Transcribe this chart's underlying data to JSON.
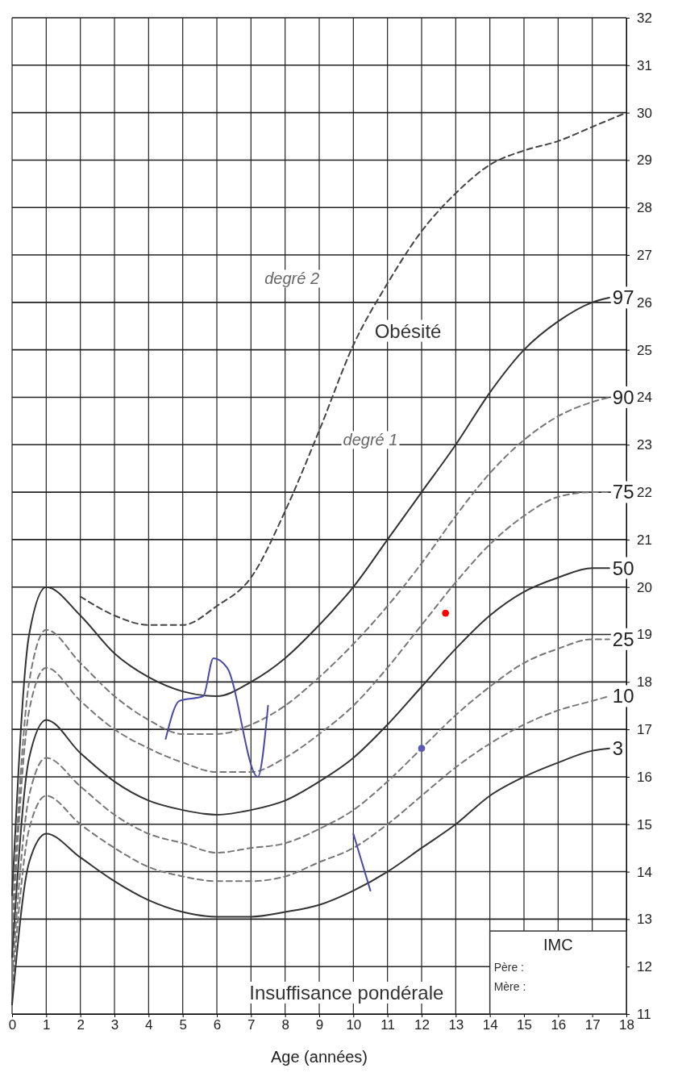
{
  "chart_data": {
    "type": "line",
    "xlabel": "Age (années)",
    "xlim": [
      0,
      18
    ],
    "ylim": [
      11,
      32
    ],
    "xticks": [
      0,
      1,
      2,
      3,
      4,
      5,
      6,
      7,
      8,
      9,
      10,
      11,
      12,
      13,
      14,
      15,
      16,
      17,
      18
    ],
    "yticks": [
      11,
      12,
      13,
      14,
      15,
      16,
      17,
      18,
      19,
      20,
      21,
      22,
      23,
      24,
      25,
      26,
      27,
      28,
      29,
      30,
      31,
      32
    ],
    "grid": true,
    "marker": "none",
    "annotations": [
      "degré 2",
      "Obésité",
      "degré 1",
      "Insuffisance pondérale",
      "IMC",
      "Père :",
      "Mère :"
    ],
    "series": [
      {
        "name": "97",
        "color": "#333333",
        "line_style": "solid",
        "x": [
          0,
          0.5,
          1,
          2,
          3,
          4,
          5,
          6,
          7,
          8,
          9,
          10,
          11,
          12,
          13,
          14,
          15,
          16,
          17,
          17.5
        ],
        "values": [
          13.5,
          19.0,
          20.0,
          19.4,
          18.6,
          18.1,
          17.8,
          17.7,
          18.0,
          18.5,
          19.2,
          20.0,
          21.0,
          22.0,
          23.0,
          24.1,
          25.0,
          25.6,
          26.0,
          26.1
        ]
      },
      {
        "color": "#444444",
        "line_style": "dashed",
        "x": [
          2,
          3,
          4,
          5,
          6,
          7,
          8,
          9,
          10,
          11,
          12,
          13,
          14,
          15,
          16,
          17,
          18
        ],
        "values": [
          19.8,
          19.4,
          19.2,
          19.2,
          19.6,
          20.2,
          21.6,
          23.3,
          25.1,
          26.4,
          27.5,
          28.3,
          28.9,
          29.2,
          29.4,
          29.7,
          30.0
        ]
      },
      {
        "name": "90",
        "color": "#777777",
        "line_style": "dashed",
        "x": [
          0,
          0.5,
          1,
          2,
          3,
          4,
          5,
          6,
          7,
          8,
          9,
          10,
          11,
          12,
          13,
          14,
          15,
          16,
          17,
          17.5
        ],
        "values": [
          13.0,
          18.0,
          19.1,
          18.4,
          17.7,
          17.2,
          16.9,
          16.9,
          17.1,
          17.5,
          18.1,
          18.8,
          19.6,
          20.5,
          21.5,
          22.4,
          23.1,
          23.6,
          23.9,
          24.0
        ]
      },
      {
        "name": "75",
        "color": "#777777",
        "line_style": "dashed",
        "x": [
          0,
          0.5,
          1,
          2,
          3,
          4,
          5,
          6,
          7,
          8,
          9,
          10,
          11,
          12,
          13,
          14,
          15,
          16,
          17,
          17.5
        ],
        "values": [
          12.6,
          17.4,
          18.3,
          17.6,
          17.0,
          16.6,
          16.3,
          16.1,
          16.1,
          16.4,
          16.9,
          17.5,
          18.3,
          19.2,
          20.1,
          20.9,
          21.5,
          21.9,
          22.0,
          22.0
        ]
      },
      {
        "name": "50",
        "color": "#333333",
        "line_style": "solid",
        "x": [
          0,
          0.5,
          1,
          2,
          3,
          4,
          5,
          6,
          7,
          8,
          9,
          10,
          11,
          12,
          13,
          14,
          15,
          16,
          17,
          17.5
        ],
        "values": [
          12.2,
          16.4,
          17.2,
          16.5,
          15.9,
          15.5,
          15.3,
          15.2,
          15.3,
          15.5,
          15.9,
          16.4,
          17.1,
          17.9,
          18.7,
          19.4,
          19.9,
          20.2,
          20.4,
          20.4
        ]
      },
      {
        "name": "25",
        "color": "#777777",
        "line_style": "dashed",
        "x": [
          0,
          0.5,
          1,
          2,
          3,
          4,
          5,
          6,
          7,
          8,
          9,
          10,
          11,
          12,
          13,
          14,
          15,
          16,
          17,
          17.5
        ],
        "values": [
          11.8,
          15.6,
          16.4,
          15.8,
          15.2,
          14.8,
          14.6,
          14.4,
          14.5,
          14.6,
          14.9,
          15.3,
          15.9,
          16.6,
          17.3,
          17.9,
          18.4,
          18.7,
          18.9,
          18.9
        ]
      },
      {
        "name": "10",
        "color": "#777777",
        "line_style": "dashed",
        "x": [
          0,
          0.5,
          1,
          2,
          3,
          4,
          5,
          6,
          7,
          8,
          9,
          10,
          11,
          12,
          13,
          14,
          15,
          16,
          17,
          17.5
        ],
        "values": [
          11.5,
          14.9,
          15.6,
          15.0,
          14.5,
          14.1,
          13.9,
          13.8,
          13.8,
          13.9,
          14.2,
          14.5,
          15.0,
          15.6,
          16.2,
          16.7,
          17.1,
          17.4,
          17.6,
          17.7
        ]
      },
      {
        "name": "3",
        "color": "#333333",
        "line_style": "solid",
        "x": [
          0,
          0.5,
          1,
          2,
          3,
          4,
          5,
          6,
          7,
          8,
          9,
          10,
          11,
          12,
          13,
          14,
          15,
          16,
          17,
          17.5
        ],
        "values": [
          11.2,
          14.2,
          14.8,
          14.3,
          13.8,
          13.4,
          13.15,
          13.05,
          13.05,
          13.15,
          13.3,
          13.6,
          14.0,
          14.5,
          15.0,
          15.6,
          16.0,
          16.3,
          16.55,
          16.6
        ]
      },
      {
        "color": "#4a4aa8",
        "line_style": "solid",
        "x": [
          4.5,
          4.9,
          5.6,
          5.9,
          6.3,
          7.2,
          7.5,
          8,
          10,
          10.5
        ],
        "values": [
          16.8,
          17.6,
          17.7,
          18.5,
          18.3,
          16.0,
          17.5,
          null,
          14.8,
          13.6
        ]
      },
      {
        "type": "scatter",
        "color": "#5a5ab8",
        "marker": "circle",
        "x": [
          12
        ],
        "values": [
          16.6
        ]
      },
      {
        "type": "scatter",
        "color": "#ff0000",
        "marker": "circle",
        "x": [
          12.7
        ],
        "values": [
          19.45
        ]
      }
    ]
  }
}
